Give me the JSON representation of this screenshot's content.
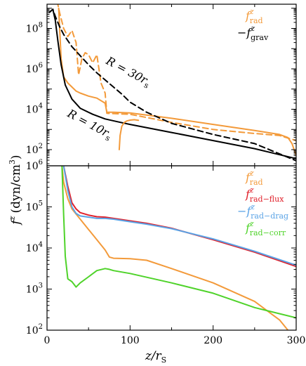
{
  "chart_data": {
    "type": "line",
    "xlabel": "z/rS",
    "xlabel_main": "z/r",
    "xlabel_sub": "S",
    "ylabel": "f^z (dyn/cm^3)",
    "ylabel_main": "f",
    "ylabel_sup": "z",
    "ylabel_unit": "(dyn/cm",
    "ylabel_unit_sup": "3",
    "ylabel_close": ")",
    "xlim": [
      0,
      300
    ],
    "x_ticks": [
      "0",
      "100",
      "200",
      "300"
    ],
    "panels": [
      {
        "id": "top",
        "ylim_exp": [
          1.2,
          9.2
        ],
        "y_scale": "log",
        "y_tick_labels": [
          {
            "base": "10",
            "exp": "2",
            "value": 2
          },
          {
            "base": "10",
            "exp": "4",
            "value": 4
          },
          {
            "base": "10",
            "exp": "6",
            "value": 6
          },
          {
            "base": "10",
            "exp": "8",
            "value": 8
          }
        ],
        "legend": [
          {
            "main": "f",
            "sup": "z",
            "sub": "rad",
            "prefix": "",
            "color": "#f39a3a"
          },
          {
            "main": "f",
            "sup": "z",
            "sub": "grav",
            "prefix": "−",
            "color": "#000000"
          }
        ],
        "annotations": [
          {
            "text_main": "R = 30r",
            "text_sub": "s"
          },
          {
            "text_main": "R = 10r",
            "text_sub": "s"
          }
        ],
        "series": [
          {
            "name": "f_rad^z R=10rs",
            "color": "#f39a3a",
            "dash": false,
            "x": [
              14,
              17,
              20,
              25,
              30,
              35,
              40,
              50,
              60,
              70,
              72,
              80,
              100,
              150,
              200,
              250,
              280,
              290,
              295,
              300
            ],
            "y": [
              9.0,
              6.5,
              5.6,
              5.3,
              5.1,
              4.9,
              4.8,
              4.65,
              4.55,
              4.3,
              3.85,
              3.85,
              3.82,
              3.55,
              3.25,
              2.95,
              2.75,
              2.6,
              2.3,
              1.7
            ]
          },
          {
            "name": "-f_grav^z R=10rs",
            "color": "#000000",
            "dash": false,
            "x": [
              3,
              7,
              10,
              13,
              17,
              22,
              30,
              40,
              55,
              70,
              85,
              100,
              150,
              200,
              250,
              300
            ],
            "y": [
              8.8,
              8.95,
              8.4,
              7.4,
              6.2,
              5.2,
              4.5,
              4.05,
              3.75,
              3.52,
              3.38,
              3.25,
              2.85,
              2.45,
              2.05,
              1.55
            ]
          },
          {
            "name": "f_rad^z R=30rs",
            "color": "#f39a3a",
            "dash": true,
            "x": [
              10,
              15,
              20,
              25,
              30,
              35,
              38,
              42,
              46,
              50,
              55,
              60,
              65,
              70,
              72,
              100,
              150,
              200,
              250,
              280,
              300
            ],
            "y": [
              9.8,
              8.8,
              8.0,
              7.6,
              7.9,
              7.3,
              5.7,
              6.5,
              6.8,
              6.7,
              6.3,
              6.7,
              5.3,
              4.8,
              3.8,
              3.75,
              3.35,
              3.0,
              2.8,
              2.7,
              2.45
            ]
          },
          {
            "name": "f_rad^z R=30rs secondary",
            "color": "#f39a3a",
            "dash": false,
            "x": [
              87,
              88,
              90,
              93,
              96,
              100,
              105,
              110
            ],
            "y": [
              2.0,
              2.7,
              3.15,
              3.35,
              3.42,
              3.46,
              3.48,
              3.45
            ]
          },
          {
            "name": "-f_grav^z R=30rs",
            "color": "#000000",
            "dash": true,
            "x": [
              3,
              7,
              10,
              15,
              20,
              30,
              40,
              50,
              60,
              70,
              80,
              90,
              100,
              120,
              150,
              200,
              250,
              300
            ],
            "y": [
              8.8,
              8.95,
              8.6,
              8.1,
              7.7,
              7.1,
              6.65,
              6.2,
              5.8,
              5.45,
              5.1,
              4.75,
              4.35,
              3.85,
              3.3,
              2.75,
              2.3,
              1.45
            ]
          }
        ]
      },
      {
        "id": "bottom",
        "ylim_exp": [
          2,
          6
        ],
        "y_scale": "log",
        "y_tick_labels": [
          {
            "base": "10",
            "exp": "2",
            "value": 2
          },
          {
            "base": "10",
            "exp": "3",
            "value": 3
          },
          {
            "base": "10",
            "exp": "4",
            "value": 4
          },
          {
            "base": "10",
            "exp": "5",
            "value": 5
          },
          {
            "base": "10",
            "exp": "6",
            "value": 6
          }
        ],
        "legend": [
          {
            "main": "f",
            "sup": "z",
            "sub": "rad",
            "prefix": "",
            "color": "#f39a3a"
          },
          {
            "main": "f",
            "sup": "z",
            "sub": "rad−flux",
            "prefix": "",
            "color": "#e0202a"
          },
          {
            "main": "f",
            "sup": "z",
            "sub": "rad−drag",
            "prefix": "−",
            "color": "#5aa3e6"
          },
          {
            "main": "f",
            "sup": "z",
            "sub": "rad−corr",
            "prefix": "",
            "color": "#4fd32a"
          }
        ],
        "series": [
          {
            "name": "f_rad^z",
            "color": "#f39a3a",
            "dash": false,
            "x": [
              18,
              20,
              25,
              30,
              40,
              50,
              60,
              70,
              75,
              80,
              100,
              120,
              150,
              200,
              250,
              280,
              290,
              300
            ],
            "y": [
              6.0,
              5.6,
              5.2,
              4.95,
              4.7,
              4.45,
              4.2,
              3.95,
              3.78,
              3.75,
              3.74,
              3.7,
              3.5,
              3.15,
              2.7,
              2.25,
              2.0,
              1.8
            ]
          },
          {
            "name": "f_rad-flux^z",
            "color": "#e0202a",
            "dash": false,
            "x": [
              20,
              25,
              30,
              35,
              40,
              50,
              60,
              70,
              80,
              100,
              120,
              150,
              200,
              250,
              300
            ],
            "y": [
              6.0,
              5.5,
              5.1,
              4.95,
              4.86,
              4.8,
              4.76,
              4.75,
              4.72,
              4.66,
              4.6,
              4.48,
              4.2,
              3.9,
              3.55
            ]
          },
          {
            "name": "-f_rad-drag^z",
            "color": "#5aa3e6",
            "dash": false,
            "x": [
              20,
              25,
              30,
              35,
              40,
              50,
              60,
              70,
              80,
              100,
              120,
              150,
              200,
              250,
              300
            ],
            "y": [
              6.0,
              5.4,
              5.0,
              4.84,
              4.78,
              4.75,
              4.72,
              4.72,
              4.7,
              4.64,
              4.58,
              4.47,
              4.22,
              3.92,
              3.58
            ]
          },
          {
            "name": "f_rad-corr^z",
            "color": "#4fd32a",
            "dash": false,
            "x": [
              18,
              20,
              22,
              25,
              30,
              35,
              40,
              50,
              60,
              70,
              75,
              80,
              100,
              150,
              200,
              250,
              300
            ],
            "y": [
              6.0,
              4.8,
              3.8,
              3.25,
              3.18,
              3.05,
              3.15,
              3.3,
              3.45,
              3.5,
              3.48,
              3.45,
              3.38,
              3.15,
              2.9,
              2.55,
              2.3
            ]
          }
        ]
      }
    ]
  }
}
